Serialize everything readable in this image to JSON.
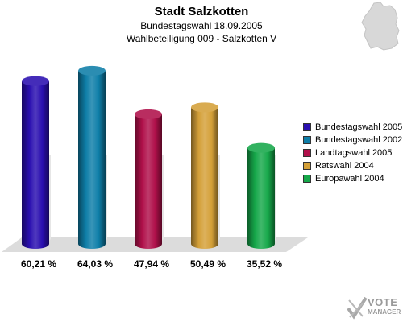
{
  "header": {
    "title": "Stadt Salzkotten",
    "subtitle1": "Bundestagswahl 18.09.2005",
    "subtitle2": "Wahlbeteiligung 009 - Salzkotten V"
  },
  "logo": {
    "line1": "VOTE",
    "line2": "MANAGER"
  },
  "chart_data": {
    "type": "bar",
    "categories": [
      "Bundestagswahl 2005",
      "Bundestagswahl 2002",
      "Landtagswahl 2005",
      "Ratswahl 2004",
      "Europawahl 2004"
    ],
    "values": [
      60.21,
      64.03,
      47.94,
      50.49,
      35.52
    ],
    "value_labels": [
      "60,21 %",
      "64,03 %",
      "47,94 %",
      "50,49 %",
      "35,52 %"
    ],
    "colors": [
      "#2a0fb0",
      "#0e7ea8",
      "#b0104a",
      "#d4a038",
      "#16a84a"
    ],
    "ylim": [
      0,
      70
    ],
    "legend_position": "right",
    "grid": false
  }
}
